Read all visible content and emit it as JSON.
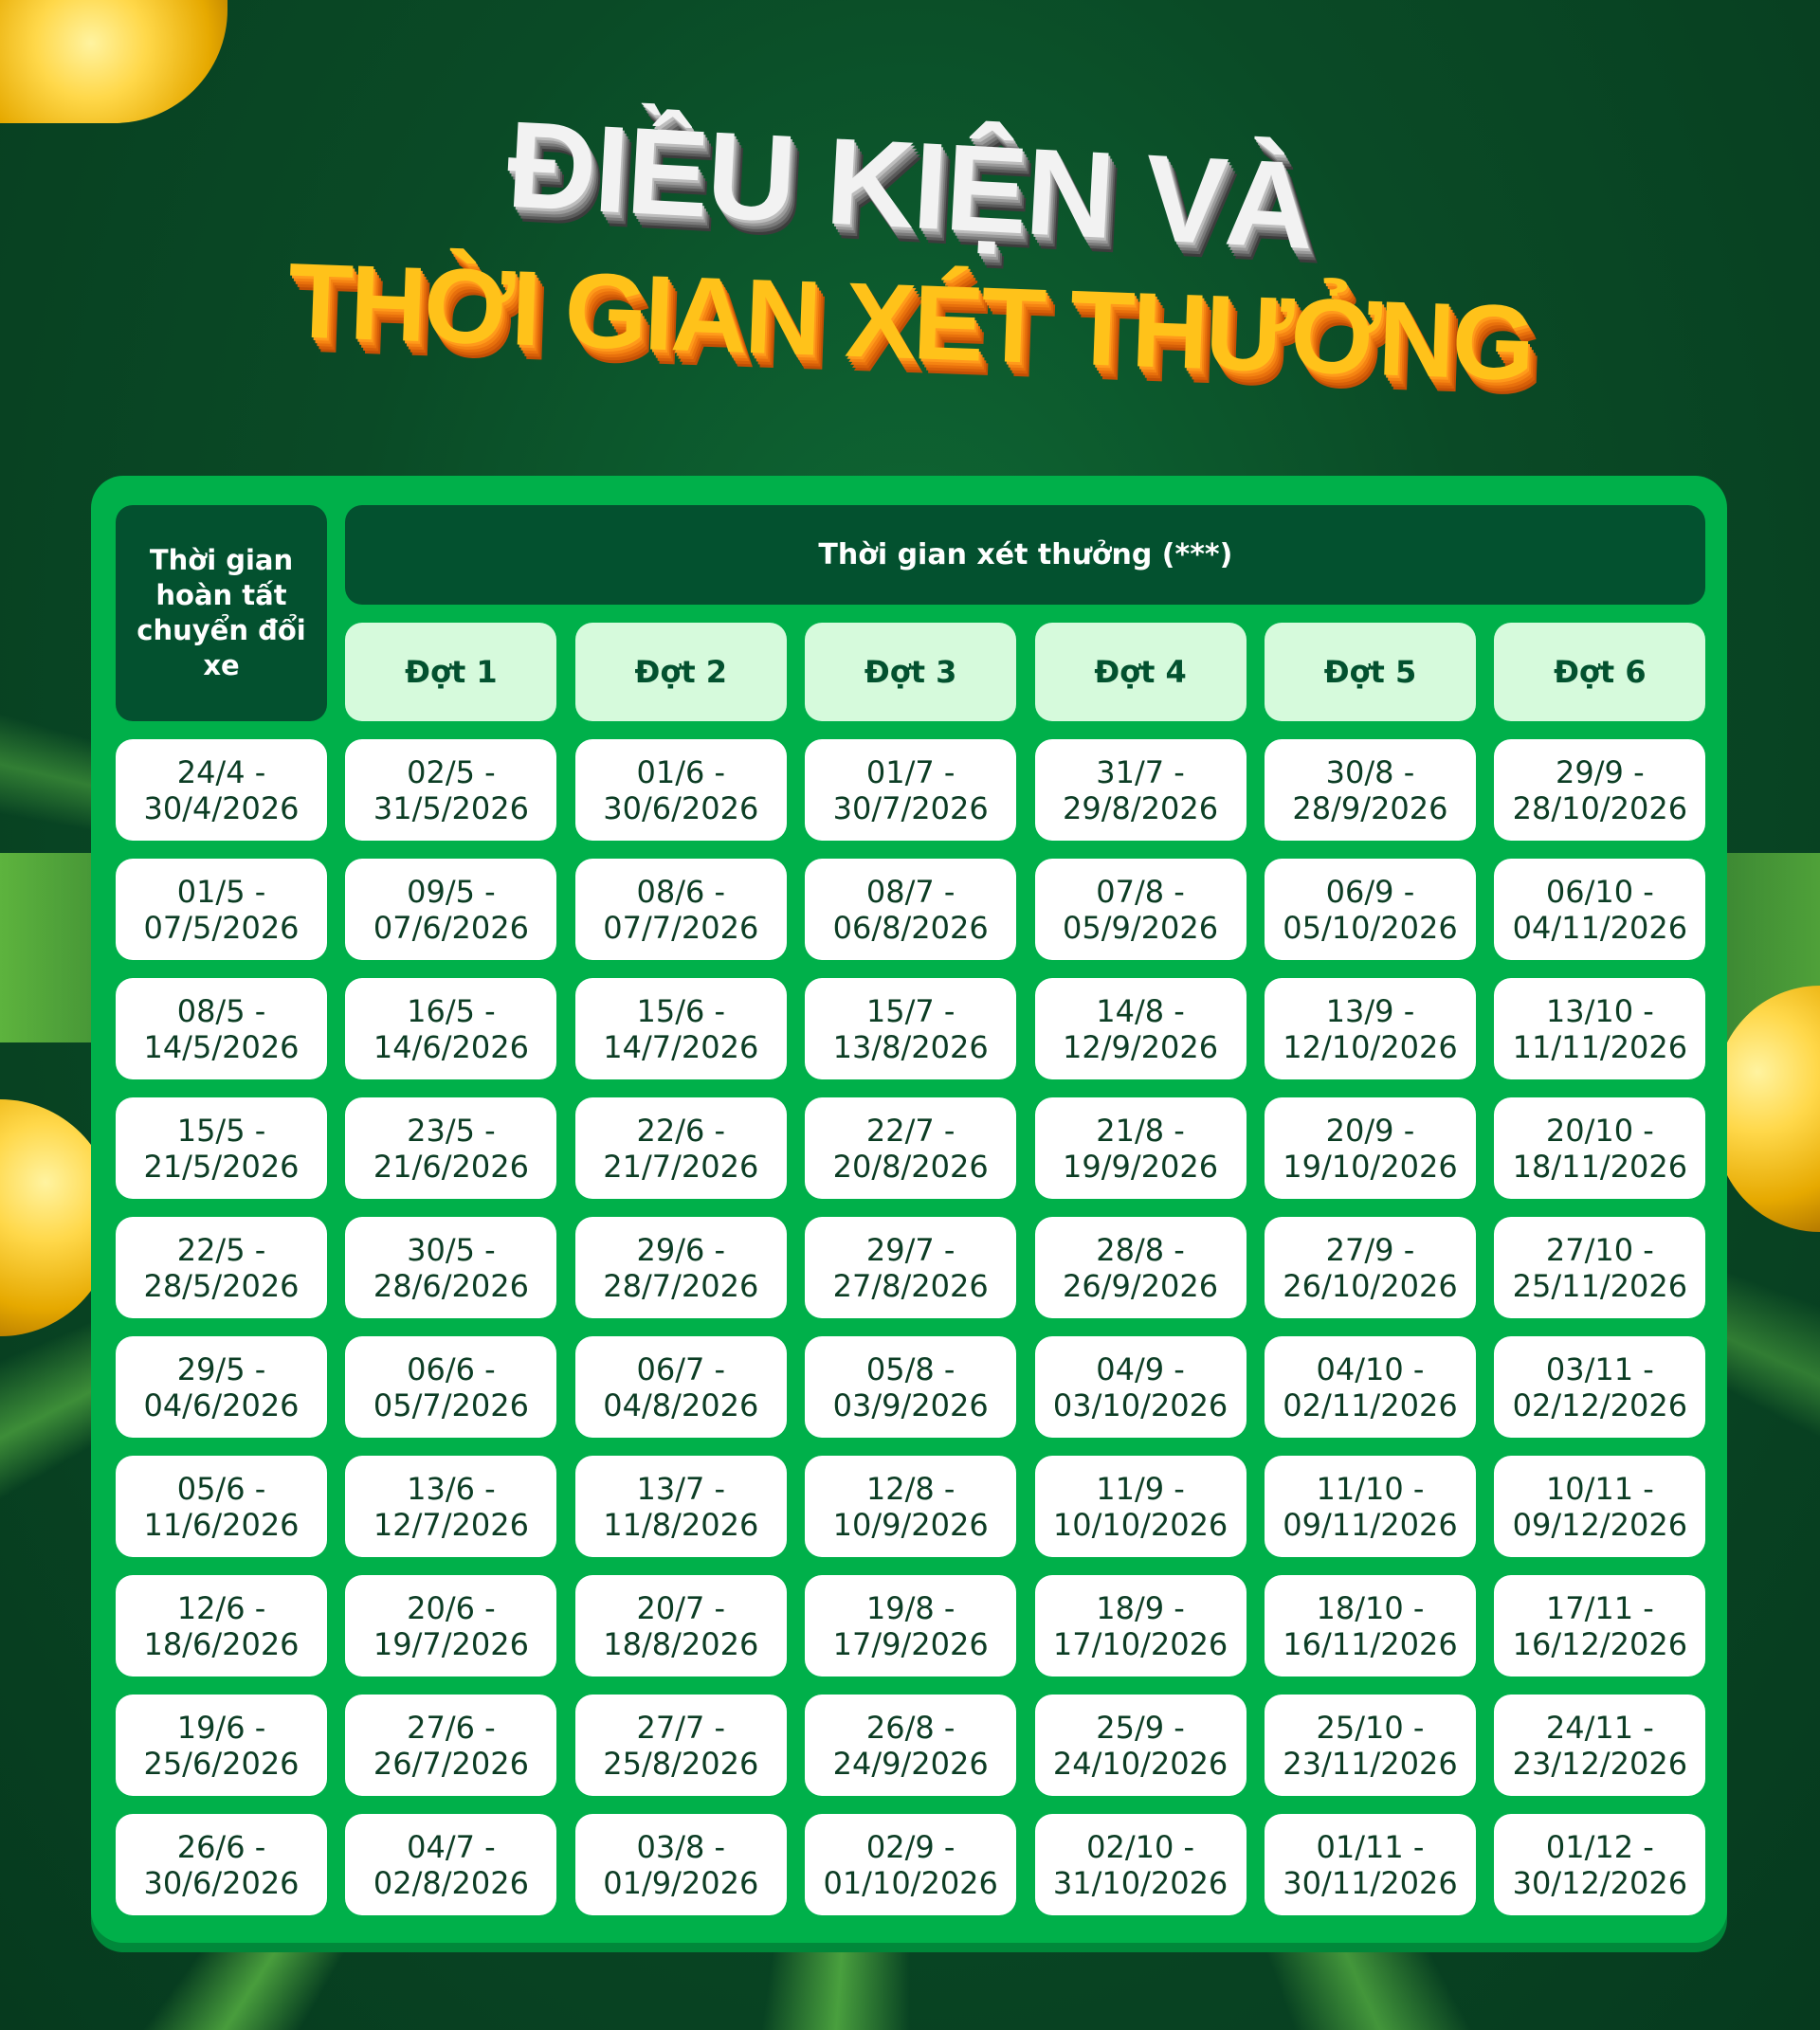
{
  "title": {
    "line1": "ĐIỀU KIỆN VÀ",
    "line2": "THỜI GIAN XÉT THƯỞNG"
  },
  "colors": {
    "panel": "#00b04a",
    "header_dark": "#03512f",
    "period_header": "#d6fadc",
    "title_orange": "#ffc21a"
  },
  "table": {
    "corner_header": "Thời gian hoàn tất chuyển đổi xe",
    "main_header": "Thời gian xét thưởng (***)",
    "periods": [
      "Đợt 1",
      "Đợt 2",
      "Đợt 3",
      "Đợt 4",
      "Đợt 5",
      "Đợt 6"
    ],
    "rows": [
      [
        "24/4 -|30/4/2026",
        "02/5 -|31/5/2026",
        "01/6 -|30/6/2026",
        "01/7 -|30/7/2026",
        "31/7 -|29/8/2026",
        "30/8 -|28/9/2026",
        "29/9 -|28/10/2026"
      ],
      [
        "01/5 -|07/5/2026",
        "09/5 -|07/6/2026",
        "08/6 -|07/7/2026",
        "08/7 -|06/8/2026",
        "07/8 -|05/9/2026",
        "06/9 -|05/10/2026",
        "06/10 -|04/11/2026"
      ],
      [
        "08/5 -|14/5/2026",
        "16/5 -|14/6/2026",
        "15/6 -|14/7/2026",
        "15/7 -|13/8/2026",
        "14/8 -|12/9/2026",
        "13/9 -|12/10/2026",
        "13/10 -|11/11/2026"
      ],
      [
        "15/5 -|21/5/2026",
        "23/5 -|21/6/2026",
        "22/6 -|21/7/2026",
        "22/7 -|20/8/2026",
        "21/8 -|19/9/2026",
        "20/9 -|19/10/2026",
        "20/10 -|18/11/2026"
      ],
      [
        "22/5 -|28/5/2026",
        "30/5 -|28/6/2026",
        "29/6 -|28/7/2026",
        "29/7 -|27/8/2026",
        "28/8 -|26/9/2026",
        "27/9 -|26/10/2026",
        "27/10 -|25/11/2026"
      ],
      [
        "29/5 -|04/6/2026",
        "06/6 -|05/7/2026",
        "06/7 -|04/8/2026",
        "05/8 -|03/9/2026",
        "04/9 -|03/10/2026",
        "04/10 -|02/11/2026",
        "03/11 -|02/12/2026"
      ],
      [
        "05/6 -|11/6/2026",
        "13/6 -|12/7/2026",
        "13/7 -|11/8/2026",
        "12/8 -|10/9/2026",
        "11/9 -|10/10/2026",
        "11/10 -|09/11/2026",
        "10/11 -|09/12/2026"
      ],
      [
        "12/6 -|18/6/2026",
        "20/6 -|19/7/2026",
        "20/7 -|18/8/2026",
        "19/8 -|17/9/2026",
        "18/9 -|17/10/2026",
        "18/10 -|16/11/2026",
        "17/11 -|16/12/2026"
      ],
      [
        "19/6 -|25/6/2026",
        "27/6 -|26/7/2026",
        "27/7 -|25/8/2026",
        "26/8 -|24/9/2026",
        "25/9 -|24/10/2026",
        "25/10 -|23/11/2026",
        "24/11 -|23/12/2026"
      ],
      [
        "26/6 -|30/6/2026",
        "04/7 -|02/8/2026",
        "03/8 -|01/9/2026",
        "02/9 -|01/10/2026",
        "02/10 -|31/10/2026",
        "01/11 -|30/11/2026",
        "01/12 -|30/12/2026"
      ]
    ]
  }
}
